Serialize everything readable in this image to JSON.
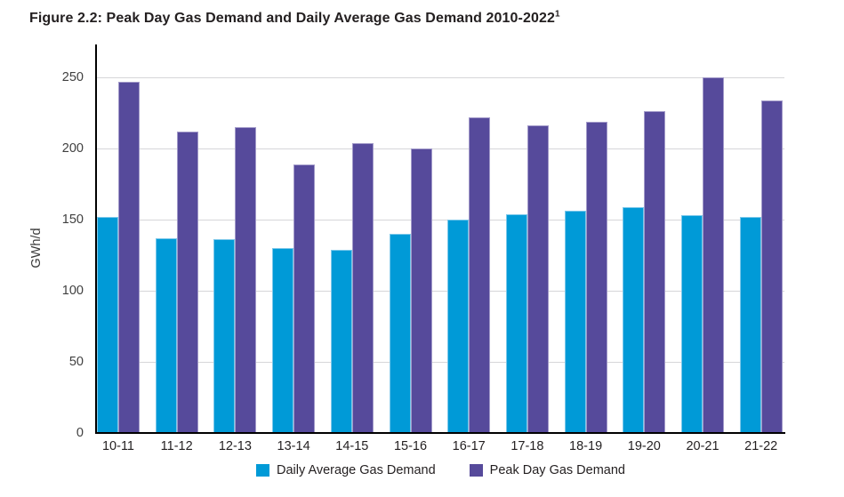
{
  "figure": {
    "title": "Figure 2.2: Peak Day Gas Demand and Daily Average Gas Demand 2010-2022",
    "footnote_marker": "1"
  },
  "chart_data": {
    "type": "bar",
    "title": "Figure 2.2: Peak Day Gas Demand and Daily Average Gas Demand 2010-2022",
    "ylabel": "GWh/d",
    "categories": [
      "10-11",
      "11-12",
      "12-13",
      "13-14",
      "14-15",
      "15-16",
      "16-17",
      "17-18",
      "18-19",
      "19-20",
      "20-21",
      "21-22"
    ],
    "series": [
      {
        "name": "Daily Average Gas Demand",
        "color": "#009ad7",
        "border_color": "#7cc8ea",
        "values": [
          152,
          137,
          136,
          130,
          129,
          140,
          150,
          154,
          156,
          159,
          153,
          152
        ]
      },
      {
        "name": "Peak Day Gas Demand",
        "color": "#564a9b",
        "border_color": "#a29ac9",
        "values": [
          247,
          212,
          215,
          189,
          204,
          200,
          222,
          216,
          219,
          226,
          250,
          234
        ]
      }
    ],
    "yticks": [
      0,
      50,
      100,
      150,
      200,
      250
    ],
    "ylim": [
      0,
      250
    ],
    "grid": "horizontal",
    "legend_position": "bottom-center",
    "colors": {
      "axis": "#000000",
      "gridline": "#d6d6d9",
      "tick_labels": "#404040",
      "category_labels": "#231f20",
      "title": "#231f20"
    }
  }
}
